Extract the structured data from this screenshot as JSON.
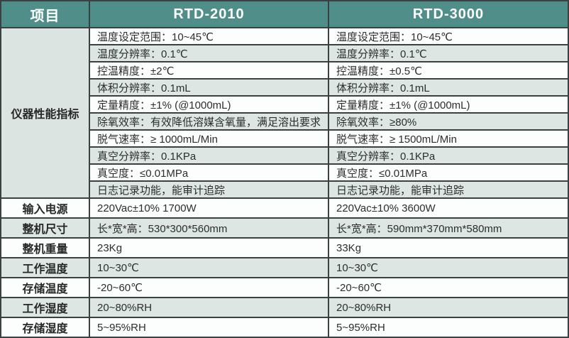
{
  "colors": {
    "header_bg": "#4f8e89",
    "header_text": "#ffffff",
    "row_light": "#fcfdfd",
    "row_shaded": "#dde6e3",
    "border": "#3a4143",
    "body_text": "#2c2e2e"
  },
  "table": {
    "header": {
      "item": "项目",
      "model_a": "RTD-2010",
      "model_b": "RTD-3000"
    },
    "group_label": "仪器性能指标",
    "rows": [
      {
        "label": "",
        "a": "温度设定范围：10~45℃",
        "b": "温度设定范围：10~45℃"
      },
      {
        "label": "",
        "a": "温度分辨率：0.1℃",
        "b": "温度分辨率：0.1℃"
      },
      {
        "label": "",
        "a": "控温精度：±2℃",
        "b": "控温精度：±0.5℃"
      },
      {
        "label": "",
        "a": "体积分辨率：0.1mL",
        "b": "体积分辨率：0.1mL"
      },
      {
        "label": "",
        "a": "定量精度：±1% (@1000mL)",
        "b": "定量精度：±1% (@1000mL)"
      },
      {
        "label": "",
        "a": "除氧效率：有效降低溶媒含氧量，满足溶出要求",
        "b": "除氧效率：≥80%"
      },
      {
        "label": "",
        "a": "脱气速率：≥ 1000mL/Min",
        "b": "脱气速率：≥ 1500mL/Min"
      },
      {
        "label": "",
        "a": "真空分辨率：0.1KPa",
        "b": "真空分辨率：0.1KPa"
      },
      {
        "label": "",
        "a": "真空度：≤0.01MPa",
        "b": "真空度：≤0.01MPa"
      },
      {
        "label": "",
        "a": "日志记录功能，能审计追踪",
        "b": "日志记录功能，能审计追踪"
      },
      {
        "label": "输入电源",
        "a": "220Vac±10% 1700W",
        "b": "220Vac±10% 3600W"
      },
      {
        "label": "整机尺寸",
        "a": "长*宽*高：530*300*560mm",
        "b": "长*宽*高：590mm*370mm*580mm"
      },
      {
        "label": "整机重量",
        "a": "23Kg",
        "b": "33Kg"
      },
      {
        "label": "工作温度",
        "a": "10~30℃",
        "b": "10~30℃"
      },
      {
        "label": "存储温度",
        "a": "-20~60℃",
        "b": "-20~60℃"
      },
      {
        "label": "工作湿度",
        "a": "20~80%RH",
        "b": "20~80%RH"
      },
      {
        "label": "存储湿度",
        "a": "5~95%RH",
        "b": "5~95%RH"
      }
    ]
  }
}
